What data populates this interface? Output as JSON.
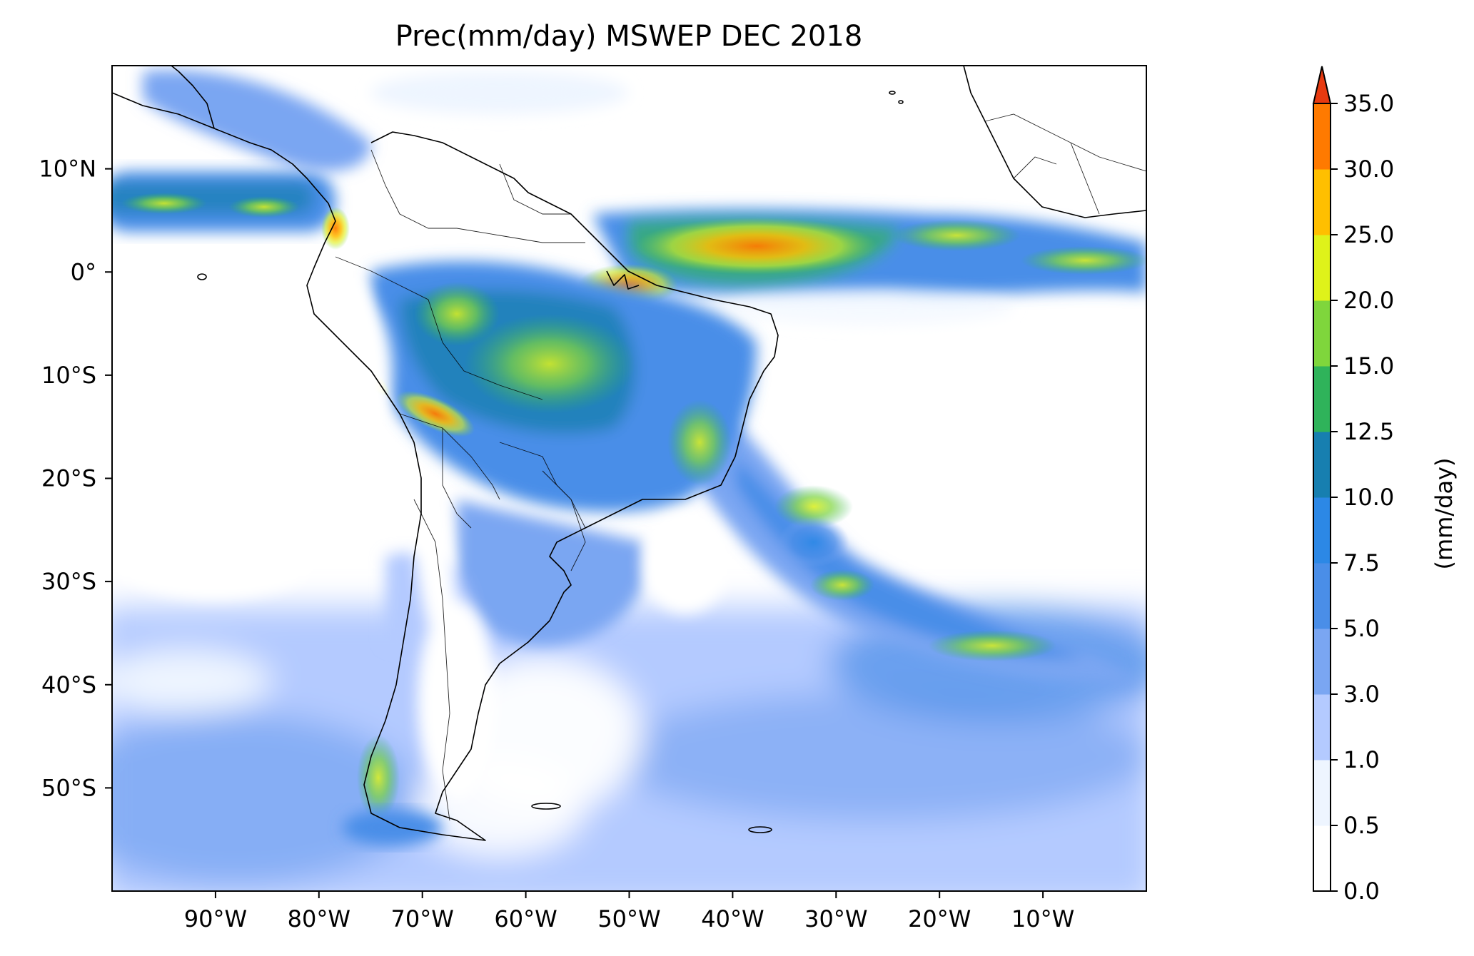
{
  "title": "Prec(mm/day) MSWEP DEC 2018",
  "map": {
    "lon_range": [
      -100,
      0
    ],
    "lat_range": [
      -60,
      20
    ],
    "x_ticks": [
      {
        "lon": -90,
        "label": "90°W"
      },
      {
        "lon": -80,
        "label": "80°W"
      },
      {
        "lon": -70,
        "label": "70°W"
      },
      {
        "lon": -60,
        "label": "60°W"
      },
      {
        "lon": -50,
        "label": "50°W"
      },
      {
        "lon": -40,
        "label": "40°W"
      },
      {
        "lon": -30,
        "label": "30°W"
      },
      {
        "lon": -20,
        "label": "20°W"
      },
      {
        "lon": -10,
        "label": "10°W"
      }
    ],
    "y_ticks": [
      {
        "lat": 10,
        "label": "10°N"
      },
      {
        "lat": 0,
        "label": "0°"
      },
      {
        "lat": -10,
        "label": "10°S"
      },
      {
        "lat": -20,
        "label": "20°S"
      },
      {
        "lat": -30,
        "label": "30°S"
      },
      {
        "lat": -40,
        "label": "40°S"
      },
      {
        "lat": -50,
        "label": "50°S"
      }
    ]
  },
  "colorbar": {
    "label": "(mm/day)",
    "extend": "max",
    "levels": [
      {
        "value": "0.0"
      },
      {
        "value": "0.5",
        "color": "#ffffff"
      },
      {
        "value": "1.0",
        "color": "#eef5ff"
      },
      {
        "value": "3.0",
        "color": "#b4caff"
      },
      {
        "value": "5.0",
        "color": "#7aa6f2"
      },
      {
        "value": "7.5",
        "color": "#4a8ee8"
      },
      {
        "value": "10.0",
        "color": "#2c88e6"
      },
      {
        "value": "12.5",
        "color": "#177fb0"
      },
      {
        "value": "15.0",
        "color": "#2fb35a"
      },
      {
        "value": "20.0",
        "color": "#7fd63c"
      },
      {
        "value": "25.0",
        "color": "#dff21a"
      },
      {
        "value": "30.0",
        "color": "#ffbf00"
      },
      {
        "value": "35.0",
        "color": "#ff7a00"
      }
    ],
    "extend_color": "#e83a10"
  }
}
